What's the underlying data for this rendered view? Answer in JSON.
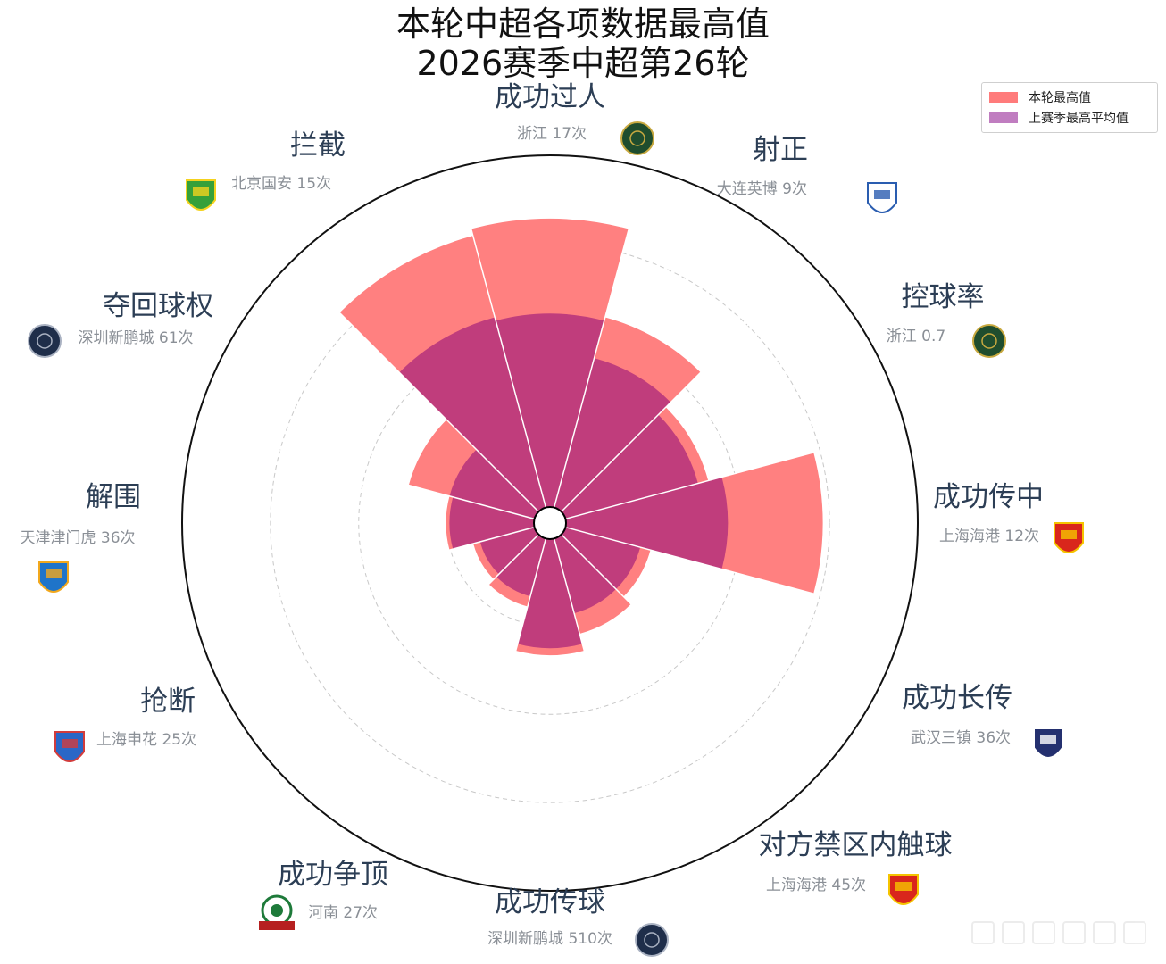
{
  "title": "本轮中超各项数据最高值",
  "subtitle": "2026赛季中超第26轮",
  "legend": [
    {
      "label": "本轮最高值",
      "color": "#ff7b7b"
    },
    {
      "label": "上赛季最高平均值",
      "color": "#c07dc0"
    }
  ],
  "colors": {
    "max": "#ff8080",
    "avg": "#c03d7c",
    "circle": "#111111",
    "grid": "#c8c8c8"
  },
  "chart_data": {
    "type": "polar-bar",
    "title": "本轮中超各项数据最高值",
    "subtitle": "2026赛季中超第26轮",
    "series": [
      {
        "name": "本轮最高值"
      },
      {
        "name": "上赛季最高平均值"
      }
    ],
    "categories": [
      {
        "stat": "成功过人",
        "team": "浙江",
        "value_text": "17次",
        "badge": "zhejiang-badge",
        "max_scaled": 0.82,
        "avg_scaled": 0.55
      },
      {
        "stat": "射正",
        "team": "大连英博",
        "value_text": "9次",
        "badge": "dalian-badge",
        "max_scaled": 0.56,
        "avg_scaled": 0.44
      },
      {
        "stat": "控球率",
        "team": "浙江",
        "value_text": "0.7",
        "badge": "zhejiang-badge",
        "max_scaled": 0.42,
        "avg_scaled": 0.39
      },
      {
        "stat": "成功传中",
        "team": "上海海港",
        "value_text": "12次",
        "badge": "shanghai-port-badge",
        "max_scaled": 0.73,
        "avg_scaled": 0.46
      },
      {
        "stat": "成功长传",
        "team": "武汉三镇",
        "value_text": "36次",
        "badge": "wuhan-badge",
        "max_scaled": 0.25,
        "avg_scaled": 0.22
      },
      {
        "stat": "对方禁区内触球",
        "team": "上海海港",
        "value_text": "45次",
        "badge": "shanghai-port-badge",
        "max_scaled": 0.28,
        "avg_scaled": 0.22
      },
      {
        "stat": "成功传球",
        "team": "深圳新鹏城",
        "value_text": "510次",
        "badge": "shenzhen-badge",
        "max_scaled": 0.33,
        "avg_scaled": 0.31
      },
      {
        "stat": "成功争顶",
        "team": "河南",
        "value_text": "27次",
        "badge": "henan-badge",
        "max_scaled": 0.2,
        "avg_scaled": 0.17
      },
      {
        "stat": "抢断",
        "team": "上海申花",
        "value_text": "25次",
        "badge": "shenhua-badge",
        "max_scaled": 0.18,
        "avg_scaled": 0.16
      },
      {
        "stat": "解围",
        "team": "天津津门虎",
        "value_text": "36次",
        "badge": "tianjin-badge",
        "max_scaled": 0.25,
        "avg_scaled": 0.24
      },
      {
        "stat": "夺回球权",
        "team": "深圳新鹏城",
        "value_text": "61次",
        "badge": "shenzhen-badge",
        "max_scaled": 0.37,
        "avg_scaled": 0.25
      },
      {
        "stat": "拦截",
        "team": "北京国安",
        "value_text": "15次",
        "badge": "guoan-badge",
        "max_scaled": 0.8,
        "avg_scaled": 0.56
      }
    ]
  }
}
